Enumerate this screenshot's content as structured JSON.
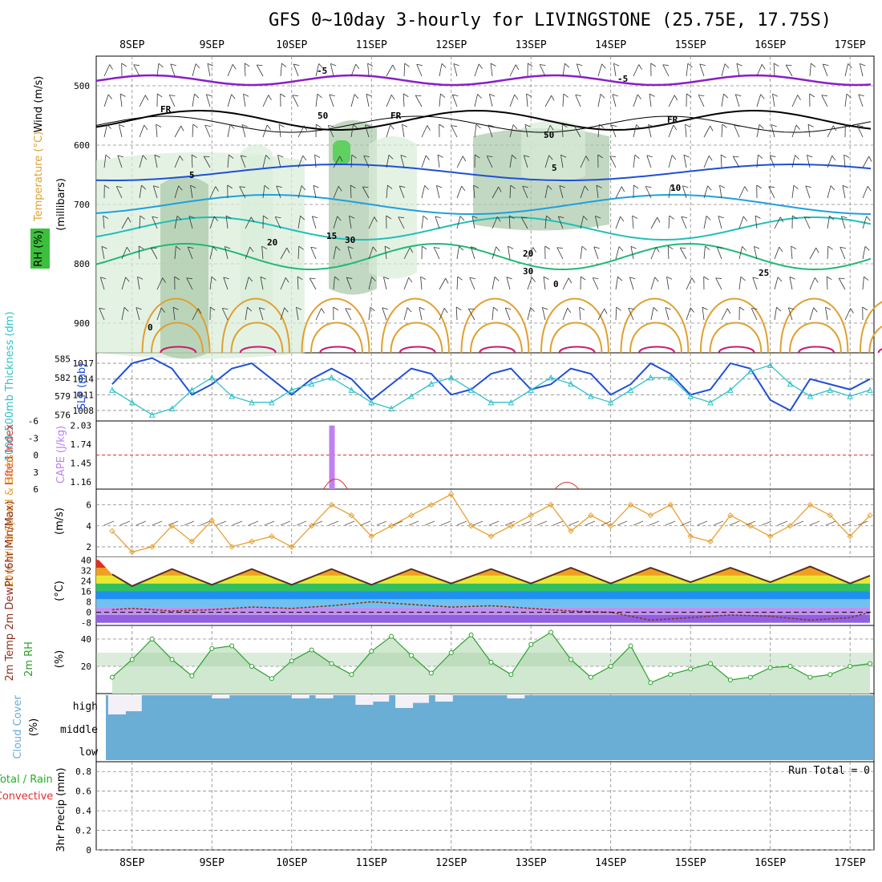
{
  "title": "GFS 0~10day 3-hourly for LIVINGSTONE (25.75E, 17.75S)",
  "dates": [
    "8SEP",
    "9SEP",
    "10SEP",
    "11SEP",
    "12SEP",
    "13SEP",
    "14SEP",
    "15SEP",
    "16SEP",
    "17SEP"
  ],
  "colors": {
    "purple": "#8a1ec8",
    "black": "#000000",
    "blue": "#1f4fd8",
    "lightblue": "#1ea0e0",
    "teal": "#1ec0b8",
    "green": "#20b878",
    "orange": "#e0a030",
    "magenta": "#d01870",
    "cyan": "#30c0c8",
    "cape": "#c080f0",
    "li": "#e03030",
    "wind": "#e8a030",
    "rh": "#2ca02c",
    "cloud": "#6aaed6"
  },
  "panels": {
    "upper": {
      "ylabel_main": "(millibars)",
      "ylabel_wind": "Wind (m/s)",
      "ylabel_temp": "Temperature (°C)",
      "ylabel_rh": "RH (%)",
      "yticks": [
        "500",
        "600",
        "700",
        "800",
        "900"
      ],
      "contour_labels": [
        "-5",
        "-5",
        "FR",
        "FR",
        "FR",
        "5",
        "5",
        "10",
        "15",
        "20",
        "20",
        "25",
        "0",
        "30",
        "30",
        "50",
        "50",
        "0"
      ]
    },
    "slp": {
      "ylabel_left": "1000-500mb Thickness (dm)",
      "ylabel_right": "SLP (mb)",
      "ticks_left": [
        "585",
        "582",
        "579",
        "576"
      ],
      "ticks_right": [
        "1017",
        "1014",
        "1011",
        "1008"
      ]
    },
    "cape": {
      "ylabel_left": "Lifted Index",
      "ylabel_right": "CAPE (J/kg)",
      "ticks_left": [
        "-6",
        "-3",
        "0",
        "3",
        "6"
      ],
      "ticks_right": [
        "2.03",
        "1.74",
        "1.45",
        "1.16"
      ]
    },
    "wind10": {
      "ylabel": "10m Wind Speed & Barbs",
      "unit": "(m/s)",
      "ticks": [
        "6",
        "4",
        "2"
      ]
    },
    "temp2m": {
      "ylabel": "2m Temp 2m DewPt (6hr Min/Max)",
      "unit": "(°C)",
      "ticks": [
        "40",
        "32",
        "24",
        "16",
        "8",
        "0",
        "-8"
      ]
    },
    "rh2m": {
      "ylabel": "2m RH",
      "unit": "(%)",
      "ticks": [
        "40",
        "20"
      ]
    },
    "cloud": {
      "ylabel": "Cloud Cover",
      "unit": "(%)",
      "levels": [
        "high",
        "middle",
        "low"
      ]
    },
    "precip": {
      "ylabel_a": "Total / Rain",
      "ylabel_b": "Convective",
      "ylabel_c": "3hr Precip (mm)",
      "ticks": [
        "0.8",
        "0.6",
        "0.4",
        "0.2",
        "0"
      ],
      "run_total": "Run Total = 0"
    }
  },
  "chart_data": [
    {
      "type": "line",
      "panel": "Thickness / SLP",
      "x": [
        "7.75",
        "8",
        "8.25",
        "8.5",
        "8.75",
        "9",
        "9.25",
        "9.5",
        "9.75",
        "10",
        "10.25",
        "10.5",
        "10.75",
        "11",
        "11.25",
        "11.5",
        "11.75",
        "12",
        "12.25",
        "12.5",
        "12.75",
        "13",
        "13.25",
        "13.5",
        "13.75",
        "14",
        "14.25",
        "14.5",
        "14.75",
        "15",
        "15.25",
        "15.5",
        "15.75",
        "16",
        "16.25",
        "16.5",
        "16.75",
        "17",
        "17.25"
      ],
      "series": [
        {
          "name": "SLP (mb)",
          "values": [
            1013,
            1017,
            1018,
            1016,
            1011,
            1013,
            1016,
            1017,
            1014,
            1011,
            1014,
            1016,
            1014,
            1010,
            1013,
            1016,
            1015,
            1011,
            1012,
            1015,
            1016,
            1012,
            1013,
            1016,
            1015,
            1011,
            1013,
            1017,
            1015,
            1011,
            1012,
            1017,
            1016,
            1010,
            1008,
            1014,
            1013,
            1012,
            1014
          ]
        },
        {
          "name": "1000-500mb Thickness (dm)",
          "values": [
            580,
            578,
            576,
            577,
            580,
            582,
            579,
            578,
            578,
            580,
            581,
            582,
            580,
            578,
            577,
            579,
            581,
            582,
            580,
            578,
            578,
            580,
            582,
            581,
            579,
            578,
            580,
            582,
            582,
            579,
            578,
            580,
            583,
            584,
            581,
            579,
            580,
            579,
            580
          ]
        }
      ]
    },
    {
      "type": "bar",
      "panel": "CAPE",
      "x": [
        "10.5"
      ],
      "values": [
        2.03
      ],
      "ylim": [
        1.16,
        2.03
      ]
    },
    {
      "type": "line",
      "panel": "10m Wind Speed",
      "x": [
        "7.75",
        "8",
        "8.25",
        "8.5",
        "8.75",
        "9",
        "9.25",
        "9.5",
        "9.75",
        "10",
        "10.25",
        "10.5",
        "10.75",
        "11",
        "11.25",
        "11.5",
        "11.75",
        "12",
        "12.25",
        "12.5",
        "12.75",
        "13",
        "13.25",
        "13.5",
        "13.75",
        "14",
        "14.25",
        "14.5",
        "14.75",
        "15",
        "15.25",
        "15.5",
        "15.75",
        "16",
        "16.25",
        "16.5",
        "16.75",
        "17",
        "17.25"
      ],
      "values": [
        3.5,
        1.5,
        2,
        4,
        2.5,
        4.5,
        2,
        2.5,
        3,
        2,
        4,
        6,
        5,
        3,
        4,
        5,
        6,
        7,
        4,
        3,
        4,
        5,
        6,
        3.5,
        5,
        4,
        6,
        5,
        6,
        3,
        2.5,
        5,
        4,
        3,
        4,
        6,
        5,
        3,
        5
      ],
      "ylim": [
        1,
        7
      ]
    },
    {
      "type": "area",
      "panel": "2m Temp",
      "x": [
        "7.75",
        "8",
        "8.5",
        "9",
        "9.5",
        "10",
        "10.5",
        "11",
        "11.5",
        "12",
        "12.5",
        "13",
        "13.5",
        "14",
        "14.5",
        "15",
        "15.5",
        "16",
        "16.5",
        "17",
        "17.25"
      ],
      "series": [
        {
          "name": "2m Temp",
          "values": [
            29,
            20,
            33,
            21,
            33,
            21,
            33,
            21,
            33,
            22,
            33,
            22,
            34,
            22,
            34,
            23,
            34,
            23,
            35,
            22,
            28
          ]
        },
        {
          "name": "2m DewPt",
          "values": [
            2,
            3,
            1,
            2,
            4,
            3,
            5,
            8,
            6,
            4,
            5,
            3,
            1,
            0,
            -6,
            -4,
            -2,
            -3,
            -6,
            -4,
            0
          ]
        }
      ],
      "ylim": [
        -8,
        40
      ]
    },
    {
      "type": "area",
      "panel": "2m RH",
      "x": [
        "7.75",
        "8",
        "8.25",
        "8.5",
        "8.75",
        "9",
        "9.25",
        "9.5",
        "9.75",
        "10",
        "10.25",
        "10.5",
        "10.75",
        "11",
        "11.25",
        "11.5",
        "11.75",
        "12",
        "12.25",
        "12.5",
        "12.75",
        "13",
        "13.25",
        "13.5",
        "13.75",
        "14",
        "14.25",
        "14.5",
        "14.75",
        "15",
        "15.25",
        "15.5",
        "15.75",
        "16",
        "16.25",
        "16.5",
        "16.75",
        "17",
        "17.25"
      ],
      "values": [
        12,
        25,
        40,
        25,
        13,
        33,
        35,
        20,
        11,
        24,
        32,
        22,
        14,
        31,
        42,
        28,
        15,
        30,
        43,
        23,
        14,
        36,
        45,
        25,
        12,
        20,
        35,
        8,
        14,
        18,
        22,
        10,
        12,
        19,
        20,
        12,
        14,
        20,
        22
      ],
      "ylim": [
        0,
        50
      ]
    },
    {
      "type": "bar",
      "panel": "Cloud Cover (high)",
      "x": [
        "7.7",
        "7.9",
        "9",
        "10",
        "10.3",
        "10.8",
        "11",
        "11.3",
        "11.5",
        "11.8",
        "12.7"
      ],
      "values": [
        30,
        25,
        5,
        5,
        5,
        15,
        10,
        20,
        12,
        10,
        5
      ]
    },
    {
      "type": "bar",
      "panel": "3hr Precip",
      "x": [],
      "values": [],
      "ylim": [
        0,
        0.9
      ]
    }
  ]
}
